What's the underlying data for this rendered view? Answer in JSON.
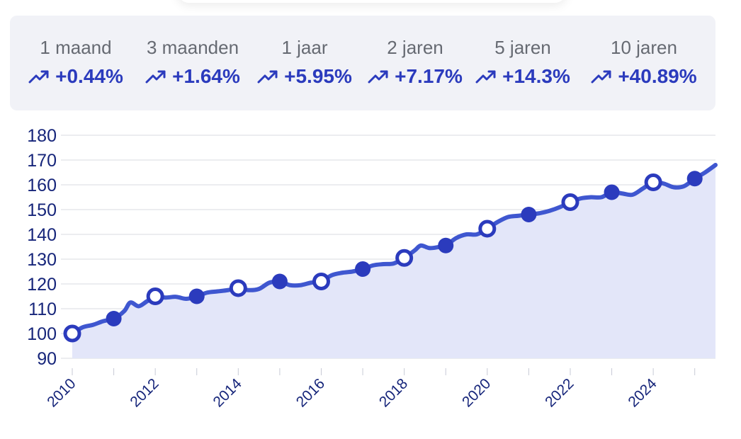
{
  "stats": [
    {
      "period": "1 maand",
      "change": "+0.44%"
    },
    {
      "period": "3 maanden",
      "change": "+1.64%"
    },
    {
      "period": "1 jaar",
      "change": "+5.95%"
    },
    {
      "period": "2 jaren",
      "change": "+7.17%"
    },
    {
      "period": "5 jaren",
      "change": "+14.3%"
    },
    {
      "period": "10 jaren",
      "change": "+40.89%"
    }
  ],
  "icons": {
    "trend": "trending-up-icon"
  },
  "colors": {
    "accent": "#2b3bbd",
    "line": "#3f57d0",
    "fill": "#e3e6f9",
    "axis_text": "#16257a",
    "grid": "#d9dbe2",
    "panel": "#f1f2f7"
  },
  "chart_data": {
    "type": "area",
    "title": "",
    "xlabel": "",
    "ylabel": "",
    "ylim": [
      90,
      180
    ],
    "yticks": [
      180,
      170,
      160,
      150,
      140,
      130,
      120,
      110,
      100,
      90
    ],
    "xlim": [
      2010,
      2025.5
    ],
    "xticks": [
      2010,
      2011,
      2012,
      2013,
      2014,
      2015,
      2016,
      2017,
      2018,
      2019,
      2020,
      2021,
      2022,
      2023,
      2024,
      2025
    ],
    "xtick_labels": [
      "2010",
      "2012",
      "2014",
      "2016",
      "2018",
      "2020",
      "2022",
      "2024"
    ],
    "grid": true,
    "legend": "none",
    "series": [
      {
        "x": [
          2010,
          2010.25,
          2010.5,
          2010.75,
          2011,
          2011.25,
          2011.4,
          2011.6,
          2011.8,
          2012,
          2012.25,
          2012.5,
          2012.75,
          2013,
          2013.25,
          2013.5,
          2013.75,
          2014,
          2014.25,
          2014.5,
          2014.75,
          2015,
          2015.25,
          2015.5,
          2015.75,
          2016,
          2016.25,
          2016.5,
          2016.75,
          2017,
          2017.25,
          2017.5,
          2017.75,
          2018,
          2018.25,
          2018.4,
          2018.6,
          2018.8,
          2019,
          2019.25,
          2019.5,
          2019.75,
          2020,
          2020.25,
          2020.5,
          2020.75,
          2021,
          2021.25,
          2021.5,
          2021.75,
          2022,
          2022.25,
          2022.5,
          2022.75,
          2023,
          2023.25,
          2023.5,
          2023.75,
          2024,
          2024.25,
          2024.5,
          2024.75,
          2025,
          2025.25,
          2025.5
        ],
        "values": [
          100,
          102.5,
          103.5,
          105,
          106,
          109,
          112.5,
          111,
          113,
          115,
          114.5,
          114.8,
          114,
          115,
          116.5,
          117,
          117.5,
          118.3,
          117.5,
          118,
          120.5,
          121,
          119.5,
          119.5,
          120.5,
          121,
          123.5,
          124.5,
          125,
          126,
          127.5,
          128,
          128.3,
          130.5,
          133.5,
          135.5,
          134.5,
          134.8,
          135.5,
          138.5,
          140,
          140,
          142.3,
          145,
          147,
          147.5,
          148,
          148.5,
          149.5,
          151,
          153,
          154.5,
          155,
          155,
          157,
          156.5,
          156,
          158.5,
          161,
          160.5,
          159,
          159.5,
          162.5,
          165,
          168
        ]
      }
    ],
    "markers": [
      {
        "x": 2010,
        "y": 100,
        "style": "hollow"
      },
      {
        "x": 2011,
        "y": 106,
        "style": "filled"
      },
      {
        "x": 2012,
        "y": 115,
        "style": "hollow"
      },
      {
        "x": 2013,
        "y": 115,
        "style": "filled"
      },
      {
        "x": 2014,
        "y": 118.3,
        "style": "hollow"
      },
      {
        "x": 2015,
        "y": 121,
        "style": "filled"
      },
      {
        "x": 2016,
        "y": 121,
        "style": "hollow"
      },
      {
        "x": 2017,
        "y": 126,
        "style": "filled"
      },
      {
        "x": 2018,
        "y": 130.5,
        "style": "hollow"
      },
      {
        "x": 2019,
        "y": 135.5,
        "style": "filled"
      },
      {
        "x": 2020,
        "y": 142.3,
        "style": "hollow"
      },
      {
        "x": 2021,
        "y": 148,
        "style": "filled"
      },
      {
        "x": 2022,
        "y": 153,
        "style": "hollow"
      },
      {
        "x": 2023,
        "y": 157,
        "style": "filled"
      },
      {
        "x": 2024,
        "y": 161,
        "style": "hollow"
      },
      {
        "x": 2025,
        "y": 162.5,
        "style": "filled"
      }
    ]
  }
}
